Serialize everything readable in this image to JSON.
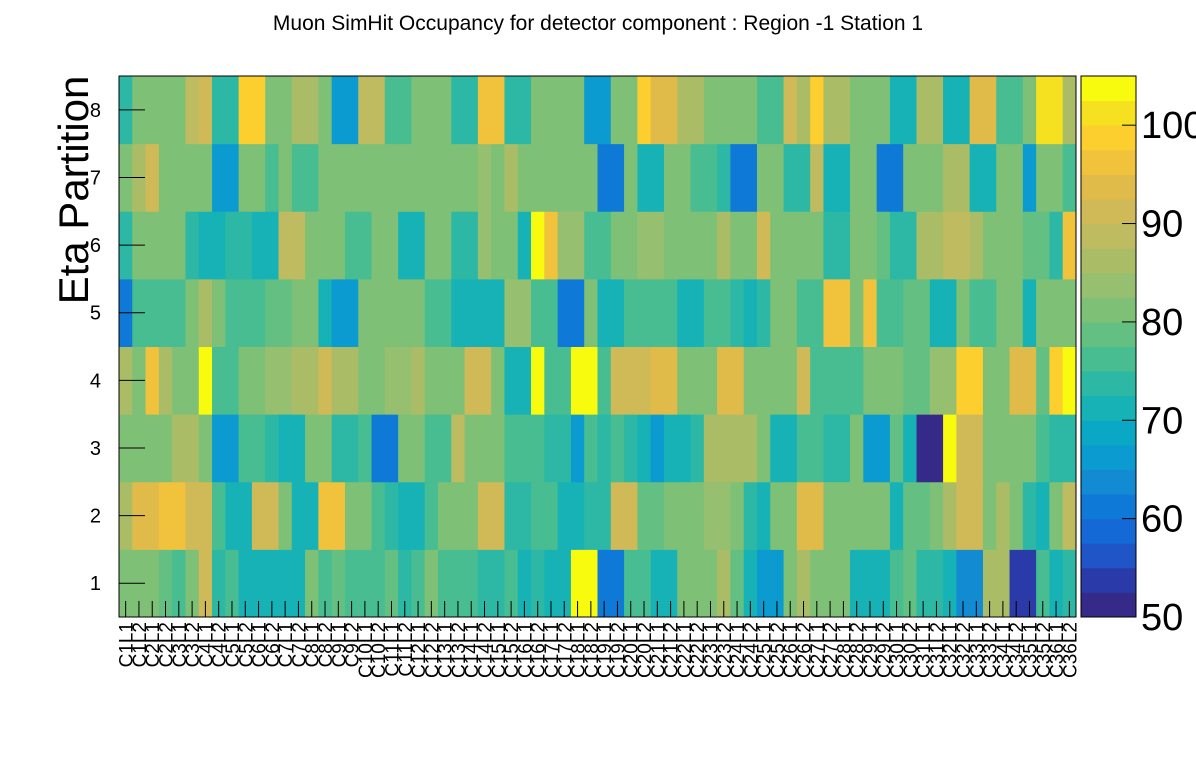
{
  "chart_data": {
    "type": "heatmap",
    "title": "Muon SimHit Occupancy for detector component : Region -1 Station 1",
    "xlabel": "",
    "ylabel": "Eta Partition",
    "x_categories": [
      "C1L1",
      "C1L2",
      "C2L1",
      "C2L2",
      "C3L1",
      "C3L2",
      "C4L1",
      "C4L2",
      "C5L1",
      "C5L2",
      "C6L1",
      "C6L2",
      "C7L1",
      "C7L2",
      "C8L1",
      "C8L2",
      "C9L1",
      "C9L2",
      "C10L1",
      "C10L2",
      "C11L1",
      "C11L2",
      "C12L1",
      "C12L2",
      "C13L1",
      "C13L2",
      "C14L1",
      "C14L2",
      "C15L1",
      "C15L2",
      "C16L1",
      "C16L2",
      "C17L1",
      "C17L2",
      "C18L1",
      "C18L2",
      "C19L1",
      "C19L2",
      "C20L1",
      "C20L2",
      "C21L1",
      "C21L2",
      "C22L1",
      "C22L2",
      "C23L1",
      "C23L2",
      "C24L1",
      "C24L2",
      "C25L1",
      "C25L2",
      "C26L1",
      "C26L2",
      "C27L1",
      "C27L2",
      "C28L1",
      "C28L2",
      "C29L1",
      "C29L2",
      "C30L1",
      "C30L2",
      "C31L1",
      "C31L2",
      "C32L1",
      "C32L2",
      "C33L1",
      "C33L2",
      "C34L1",
      "C34L2",
      "C35L1",
      "C35L2",
      "C36L1",
      "C36L2"
    ],
    "y_categories": [
      "1",
      "2",
      "3",
      "4",
      "5",
      "6",
      "7",
      "8"
    ],
    "z": [
      [
        80,
        82,
        82,
        78,
        76,
        80,
        92,
        74,
        76,
        72,
        72,
        70,
        72,
        70,
        80,
        76,
        78,
        76,
        76,
        76,
        78,
        74,
        76,
        82,
        76,
        76,
        76,
        74,
        74,
        76,
        72,
        74,
        72,
        70,
        103,
        104,
        62,
        62,
        76,
        76,
        72,
        72,
        80,
        80,
        80,
        86,
        78,
        72,
        66,
        66,
        82,
        86,
        80,
        80,
        80,
        70,
        70,
        70,
        76,
        78,
        74,
        74,
        72,
        64,
        64,
        86,
        86,
        54,
        54,
        76,
        70,
        74
      ],
      [
        86,
        94,
        94,
        96,
        96,
        92,
        90,
        76,
        72,
        72,
        92,
        92,
        80,
        72,
        72,
        96,
        96,
        82,
        80,
        76,
        74,
        72,
        72,
        76,
        82,
        82,
        82,
        92,
        92,
        74,
        74,
        76,
        76,
        70,
        70,
        74,
        74,
        92,
        92,
        78,
        78,
        80,
        80,
        80,
        84,
        84,
        82,
        74,
        72,
        80,
        80,
        94,
        94,
        80,
        80,
        80,
        80,
        80,
        72,
        78,
        78,
        80,
        86,
        90,
        90,
        80,
        86,
        80,
        74,
        72,
        80,
        88
      ],
      [
        82,
        82,
        80,
        80,
        86,
        86,
        82,
        66,
        66,
        76,
        76,
        74,
        72,
        72,
        80,
        80,
        74,
        74,
        76,
        62,
        62,
        80,
        80,
        76,
        76,
        88,
        82,
        82,
        82,
        76,
        76,
        76,
        74,
        74,
        66,
        76,
        74,
        76,
        74,
        70,
        66,
        70,
        70,
        74,
        86,
        86,
        86,
        86,
        82,
        72,
        72,
        76,
        76,
        74,
        74,
        80,
        66,
        66,
        78,
        72,
        52,
        52,
        104,
        90,
        90,
        80,
        80,
        80,
        80,
        76,
        74,
        74
      ],
      [
        86,
        80,
        96,
        86,
        82,
        82,
        104,
        76,
        76,
        82,
        82,
        84,
        84,
        86,
        86,
        90,
        86,
        86,
        80,
        80,
        84,
        84,
        86,
        82,
        82,
        80,
        90,
        90,
        80,
        72,
        72,
        104,
        76,
        76,
        104,
        104,
        76,
        90,
        90,
        90,
        94,
        94,
        80,
        82,
        82,
        94,
        94,
        82,
        82,
        80,
        80,
        90,
        76,
        76,
        76,
        76,
        80,
        80,
        80,
        78,
        78,
        84,
        84,
        98,
        98,
        80,
        80,
        94,
        94,
        78,
        98,
        104
      ],
      [
        62,
        76,
        76,
        76,
        76,
        82,
        86,
        80,
        76,
        76,
        76,
        78,
        78,
        80,
        80,
        70,
        66,
        66,
        80,
        80,
        80,
        80,
        80,
        76,
        76,
        72,
        70,
        72,
        72,
        84,
        84,
        76,
        76,
        62,
        62,
        80,
        70,
        70,
        76,
        76,
        76,
        76,
        70,
        70,
        76,
        76,
        74,
        70,
        74,
        80,
        80,
        76,
        76,
        96,
        96,
        80,
        96,
        76,
        76,
        78,
        78,
        72,
        72,
        80,
        76,
        76,
        80,
        80,
        72,
        80,
        80,
        80
      ],
      [
        74,
        82,
        82,
        82,
        82,
        74,
        70,
        70,
        74,
        74,
        72,
        72,
        88,
        88,
        80,
        82,
        82,
        76,
        76,
        80,
        80,
        70,
        70,
        80,
        80,
        74,
        74,
        84,
        82,
        82,
        72,
        104,
        96,
        84,
        84,
        76,
        76,
        80,
        80,
        84,
        84,
        80,
        80,
        80,
        80,
        86,
        82,
        82,
        92,
        80,
        80,
        80,
        80,
        74,
        74,
        80,
        80,
        78,
        74,
        74,
        86,
        86,
        88,
        88,
        86,
        80,
        80,
        80,
        78,
        78,
        74,
        96
      ],
      [
        80,
        86,
        92,
        80,
        80,
        80,
        80,
        66,
        66,
        82,
        82,
        76,
        80,
        76,
        76,
        82,
        82,
        82,
        82,
        82,
        82,
        80,
        80,
        80,
        80,
        80,
        80,
        84,
        82,
        86,
        82,
        80,
        80,
        80,
        80,
        80,
        62,
        62,
        80,
        72,
        72,
        80,
        80,
        76,
        76,
        74,
        62,
        62,
        82,
        82,
        74,
        74,
        88,
        72,
        72,
        80,
        80,
        62,
        62,
        80,
        80,
        80,
        86,
        86,
        72,
        72,
        80,
        80,
        66,
        80,
        80,
        76
      ],
      [
        74,
        80,
        80,
        80,
        80,
        88,
        92,
        74,
        74,
        98,
        98,
        80,
        80,
        86,
        86,
        80,
        66,
        66,
        88,
        88,
        76,
        76,
        80,
        80,
        80,
        74,
        74,
        96,
        96,
        74,
        74,
        80,
        80,
        80,
        80,
        66,
        66,
        80,
        80,
        98,
        94,
        94,
        86,
        86,
        80,
        80,
        80,
        80,
        76,
        76,
        90,
        86,
        98,
        86,
        86,
        80,
        80,
        80,
        70,
        70,
        86,
        86,
        70,
        70,
        94,
        94,
        76,
        76,
        80,
        100,
        100,
        86
      ]
    ],
    "zlim": [
      50,
      105
    ],
    "colorbar_ticks": [
      "50",
      "60",
      "70",
      "80",
      "90",
      "100"
    ],
    "colormap": [
      "#352a87",
      "#2a3aa8",
      "#1f55c7",
      "#1469d6",
      "#0f79d8",
      "#128bd3",
      "#0c9bd0",
      "#0aa8c5",
      "#17b2b6",
      "#2cb8a4",
      "#48bd91",
      "#64c082",
      "#7fc077",
      "#96bf6f",
      "#aabd66",
      "#bebb60",
      "#d0ba58",
      "#e1bb4a",
      "#f1c23c",
      "#fcce2e",
      "#f6e121",
      "#f9fb0e"
    ]
  }
}
